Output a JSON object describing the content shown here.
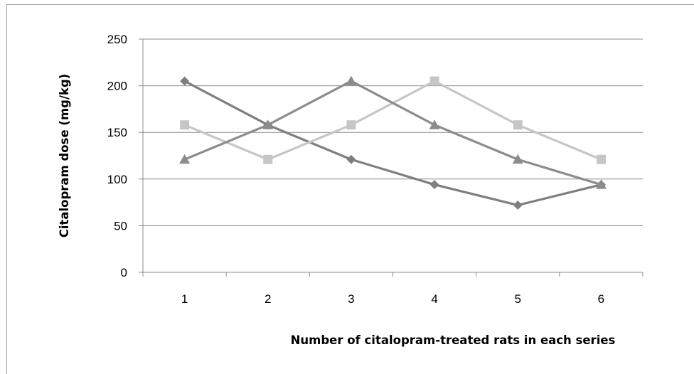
{
  "chart_data": {
    "type": "line",
    "title": "",
    "xlabel": "Number of citalopram-treated rats in each series",
    "ylabel": "Citalopram dose (mg/kg)",
    "x": [
      1,
      2,
      3,
      4,
      5,
      6
    ],
    "x_tick_labels": [
      "1",
      "2",
      "3",
      "4",
      "5",
      "6"
    ],
    "ylim": [
      0,
      250
    ],
    "y_ticks": [
      0,
      50,
      100,
      150,
      200,
      250
    ],
    "grid": true,
    "legend": "none",
    "series": [
      {
        "marker": "diamond",
        "color": "#7f7f7f",
        "values": [
          205,
          158,
          121,
          94,
          72,
          94
        ]
      },
      {
        "marker": "square",
        "color": "#c6c6c6",
        "values": [
          158,
          121,
          158,
          205,
          158,
          121
        ]
      },
      {
        "marker": "triangle",
        "color": "#8c8c8c",
        "values": [
          121,
          158,
          205,
          158,
          121,
          94
        ]
      }
    ]
  }
}
